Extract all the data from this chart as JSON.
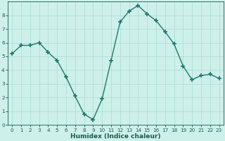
{
  "x": [
    0,
    1,
    2,
    3,
    4,
    5,
    6,
    7,
    8,
    9,
    10,
    11,
    12,
    13,
    14,
    15,
    16,
    17,
    18,
    19,
    20,
    21,
    22,
    23
  ],
  "y": [
    5.2,
    5.8,
    5.8,
    6.0,
    5.3,
    4.7,
    3.5,
    2.1,
    0.8,
    0.4,
    1.9,
    4.7,
    7.5,
    8.3,
    8.7,
    8.1,
    7.6,
    6.8,
    5.9,
    4.3,
    3.3,
    3.6,
    3.7,
    3.4
  ],
  "line_color": "#1a7a6e",
  "marker": "+",
  "marker_size": 4,
  "marker_lw": 1.2,
  "bg_color": "#cef0ea",
  "grid_color": "#b0ddd5",
  "xlabel": "Humidex (Indice chaleur)",
  "xlim": [
    -0.5,
    23.5
  ],
  "ylim": [
    0,
    9
  ],
  "yticks": [
    0,
    1,
    2,
    3,
    4,
    5,
    6,
    7,
    8
  ],
  "xticks": [
    0,
    1,
    2,
    3,
    4,
    5,
    6,
    7,
    8,
    9,
    10,
    11,
    12,
    13,
    14,
    15,
    16,
    17,
    18,
    19,
    20,
    21,
    22,
    23
  ],
  "tick_fontsize": 5.2,
  "xlabel_fontsize": 6.5,
  "label_color": "#1a5a50",
  "spine_color": "#1a5a50",
  "linewidth": 1.0
}
